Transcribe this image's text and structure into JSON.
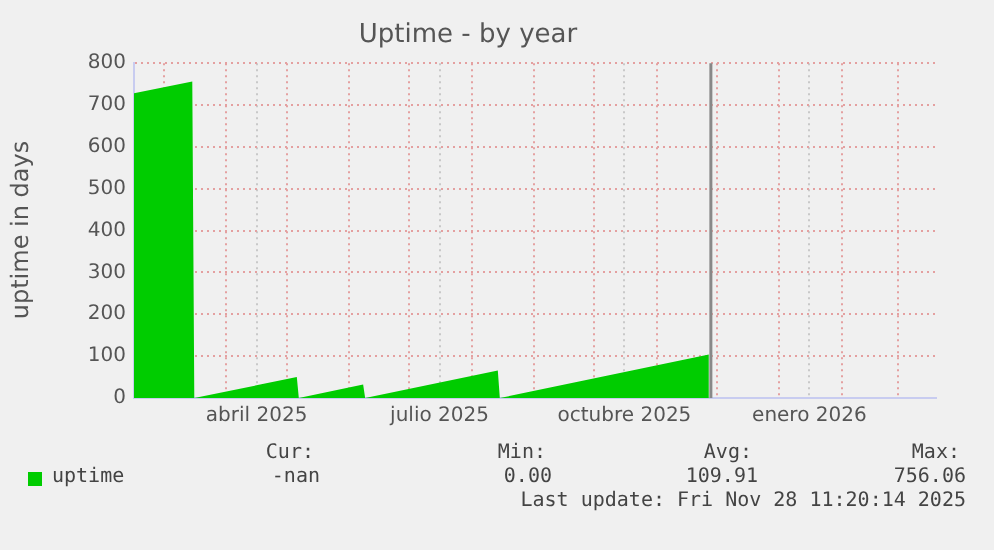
{
  "chart_data": {
    "type": "area",
    "title": "Uptime - by year",
    "ylabel": "uptime in days",
    "x": [
      "2025-02-14",
      "2025-03-15",
      "2025-03-16",
      "2025-05-06",
      "2025-05-07",
      "2025-06-08",
      "2025-06-09",
      "2025-08-14",
      "2025-08-15",
      "2025-11-27"
    ],
    "series": [
      {
        "name": "uptime",
        "color": "#00cc00",
        "values": [
          728,
          756,
          0,
          50,
          0,
          32,
          0,
          66,
          0,
          104
        ]
      }
    ],
    "xlim": [
      "2025-02-14",
      "2026-03-20"
    ],
    "xticks": [
      {
        "value": "2025-03-01",
        "label": null
      },
      {
        "value": "2025-04-01",
        "label": null
      },
      {
        "value": "2025-04-16",
        "label": "abril 2025"
      },
      {
        "value": "2025-05-01",
        "label": null
      },
      {
        "value": "2025-06-01",
        "label": null
      },
      {
        "value": "2025-07-01",
        "label": null
      },
      {
        "value": "2025-07-16",
        "label": "julio 2025"
      },
      {
        "value": "2025-08-01",
        "label": null
      },
      {
        "value": "2025-09-01",
        "label": null
      },
      {
        "value": "2025-10-01",
        "label": null
      },
      {
        "value": "2025-10-16",
        "label": "octubre 2025"
      },
      {
        "value": "2025-11-01",
        "label": null
      },
      {
        "value": "2025-12-01",
        "label": null
      },
      {
        "value": "2026-01-01",
        "label": null
      },
      {
        "value": "2026-01-16",
        "label": "enero 2026"
      },
      {
        "value": "2026-02-01",
        "label": null
      },
      {
        "value": "2026-03-01",
        "label": null
      }
    ],
    "ylim": [
      0,
      800
    ],
    "yticks": [
      0,
      100,
      200,
      300,
      400,
      500,
      600,
      700,
      800
    ],
    "grid": true,
    "legend": "bottom left",
    "ref_lines": [
      {
        "axis": "x",
        "value": "2025-11-28",
        "color": "#888888"
      }
    ],
    "annotations": [
      "Cur:",
      "Min:",
      "Avg:",
      "Max:",
      "-nan",
      "0.00",
      "109.91",
      "756.06",
      "Last update: Fri Nov 28 11:20:14 2025"
    ]
  }
}
